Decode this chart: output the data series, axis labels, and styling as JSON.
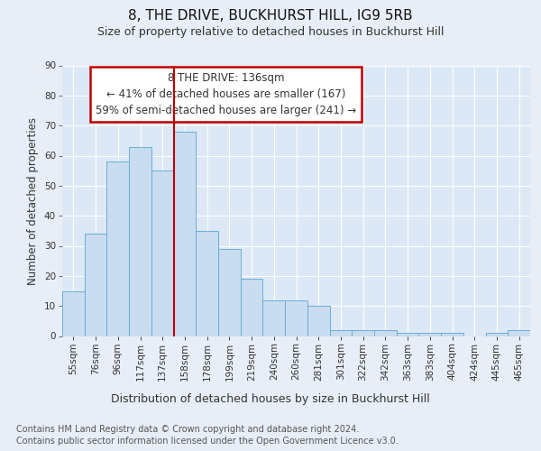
{
  "title": "8, THE DRIVE, BUCKHURST HILL, IG9 5RB",
  "subtitle": "Size of property relative to detached houses in Buckhurst Hill",
  "xlabel": "Distribution of detached houses by size in Buckhurst Hill",
  "ylabel": "Number of detached properties",
  "categories": [
    "55sqm",
    "76sqm",
    "96sqm",
    "117sqm",
    "137sqm",
    "158sqm",
    "178sqm",
    "199sqm",
    "219sqm",
    "240sqm",
    "260sqm",
    "281sqm",
    "301sqm",
    "322sqm",
    "342sqm",
    "363sqm",
    "383sqm",
    "404sqm",
    "424sqm",
    "445sqm",
    "465sqm"
  ],
  "values": [
    15,
    34,
    58,
    63,
    55,
    68,
    35,
    29,
    19,
    12,
    12,
    10,
    2,
    2,
    2,
    1,
    1,
    1,
    0,
    1,
    2
  ],
  "bar_color": "#c9dcf0",
  "bar_edge_color": "#6baed6",
  "vline_index": 4,
  "vline_color": "#c00000",
  "annotation_line1": "8 THE DRIVE: 136sqm",
  "annotation_line2": "← 41% of detached houses are smaller (167)",
  "annotation_line3": "59% of semi-detached houses are larger (241) →",
  "annotation_box_facecolor": "#ffffff",
  "annotation_box_edgecolor": "#c00000",
  "background_color": "#e8eef8",
  "plot_bg_color": "#dce8f5",
  "grid_color": "#ffffff",
  "ylim": [
    0,
    90
  ],
  "yticks": [
    0,
    10,
    20,
    30,
    40,
    50,
    60,
    70,
    80,
    90
  ],
  "footer_line1": "Contains HM Land Registry data © Crown copyright and database right 2024.",
  "footer_line2": "Contains public sector information licensed under the Open Government Licence v3.0.",
  "title_fontsize": 11,
  "subtitle_fontsize": 9,
  "xlabel_fontsize": 9,
  "ylabel_fontsize": 8.5,
  "tick_fontsize": 7.5,
  "annotation_fontsize": 8.5,
  "footer_fontsize": 7
}
